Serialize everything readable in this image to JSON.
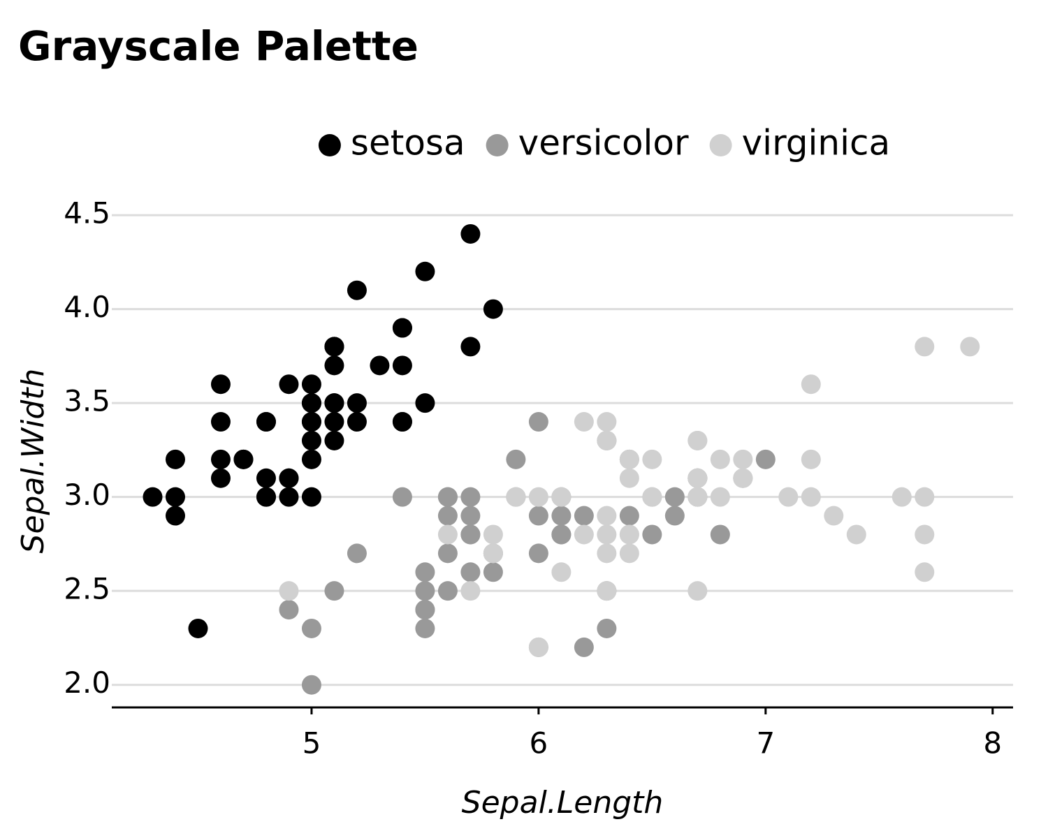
{
  "chart_data": {
    "type": "scatter",
    "title": "Grayscale Palette",
    "x_label": "Sepal.Length",
    "y_label": "Sepal.Width",
    "legend": "top",
    "grid": true,
    "xlim": [
      4.12,
      8.09
    ],
    "ylim": [
      1.88,
      4.53
    ],
    "xticks": [
      5,
      6,
      7,
      8
    ],
    "yticks": [
      {
        "value": 2,
        "label": "2.0"
      },
      2.5,
      {
        "value": 3,
        "label": "3.0"
      },
      3.5,
      {
        "value": 4,
        "label": "4.0"
      },
      4.5
    ],
    "series": [
      {
        "name": "setosa",
        "color": "#000000",
        "x": [
          5.1,
          4.9,
          4.7,
          4.6,
          5.0,
          5.4,
          4.6,
          5.0,
          4.4,
          4.9,
          5.4,
          4.8,
          4.8,
          4.3,
          5.8,
          5.7,
          5.4,
          5.1,
          5.7,
          5.1,
          5.4,
          5.1,
          4.6,
          5.1,
          4.8,
          5.0,
          5.0,
          5.2,
          5.2,
          4.7,
          4.8,
          5.4,
          5.2,
          5.5,
          4.9,
          5.0,
          5.5,
          4.9,
          4.4,
          5.1,
          5.0,
          4.5,
          4.4,
          5.0,
          5.1,
          4.8,
          5.1,
          4.6,
          5.3,
          5.0
        ],
        "values": [
          3.5,
          3.0,
          3.2,
          3.1,
          3.6,
          3.9,
          3.4,
          3.4,
          2.9,
          3.1,
          3.7,
          3.4,
          3.0,
          3.0,
          4.0,
          4.4,
          3.9,
          3.5,
          3.8,
          3.8,
          3.4,
          3.7,
          3.6,
          3.3,
          3.4,
          3.0,
          3.4,
          3.5,
          3.4,
          3.2,
          3.1,
          3.4,
          4.1,
          4.2,
          3.1,
          3.2,
          3.5,
          3.6,
          3.0,
          3.4,
          3.5,
          2.3,
          3.2,
          3.5,
          3.8,
          3.0,
          3.8,
          3.2,
          3.7,
          3.3
        ]
      },
      {
        "name": "versicolor",
        "color": "#999999",
        "x": [
          7.0,
          6.4,
          6.9,
          5.5,
          6.5,
          5.7,
          6.3,
          4.9,
          6.6,
          5.2,
          5.0,
          5.9,
          6.0,
          6.1,
          5.6,
          6.7,
          5.6,
          5.8,
          6.2,
          5.6,
          5.9,
          6.1,
          6.3,
          6.1,
          6.4,
          6.6,
          6.8,
          6.7,
          6.0,
          5.7,
          5.5,
          5.5,
          5.8,
          6.0,
          5.4,
          6.0,
          6.7,
          6.3,
          5.6,
          5.5,
          5.5,
          6.1,
          5.8,
          5.0,
          5.6,
          5.7,
          5.7,
          6.2,
          5.1,
          5.7
        ],
        "values": [
          3.2,
          3.2,
          3.1,
          2.3,
          2.8,
          2.8,
          3.3,
          2.4,
          2.9,
          2.7,
          2.0,
          3.0,
          2.2,
          2.9,
          2.9,
          3.1,
          3.0,
          2.7,
          2.2,
          2.5,
          3.2,
          2.8,
          2.5,
          2.8,
          2.9,
          3.0,
          2.8,
          3.0,
          2.9,
          2.6,
          2.4,
          2.4,
          2.7,
          2.7,
          3.0,
          3.4,
          3.1,
          2.3,
          3.0,
          2.5,
          2.6,
          3.0,
          2.6,
          2.3,
          2.7,
          3.0,
          2.9,
          2.9,
          2.5,
          2.8
        ]
      },
      {
        "name": "virginica",
        "color": "#d0d0d0",
        "x": [
          6.3,
          5.8,
          7.1,
          6.3,
          6.5,
          7.6,
          4.9,
          7.3,
          6.7,
          7.2,
          6.5,
          6.4,
          6.8,
          5.7,
          5.8,
          6.4,
          6.5,
          7.7,
          7.7,
          6.0,
          6.9,
          5.6,
          7.7,
          6.3,
          6.7,
          7.2,
          6.2,
          6.1,
          6.4,
          7.2,
          7.4,
          7.9,
          6.4,
          6.3,
          6.1,
          7.7,
          6.3,
          6.4,
          6.0,
          6.9,
          6.7,
          6.9,
          5.8,
          6.8,
          6.7,
          6.7,
          6.3,
          6.5,
          6.2,
          5.9
        ],
        "values": [
          3.3,
          2.7,
          3.0,
          2.9,
          3.0,
          3.0,
          2.5,
          2.9,
          2.5,
          3.6,
          3.2,
          2.7,
          3.0,
          2.5,
          2.8,
          3.2,
          3.0,
          3.8,
          2.6,
          2.2,
          3.2,
          2.8,
          2.8,
          2.7,
          3.3,
          3.2,
          2.8,
          3.0,
          2.8,
          3.0,
          2.8,
          3.8,
          2.8,
          2.8,
          2.6,
          3.0,
          3.4,
          3.1,
          3.0,
          3.1,
          3.1,
          3.1,
          2.7,
          3.2,
          3.3,
          3.0,
          2.5,
          3.0,
          3.4,
          3.0
        ]
      }
    ]
  }
}
